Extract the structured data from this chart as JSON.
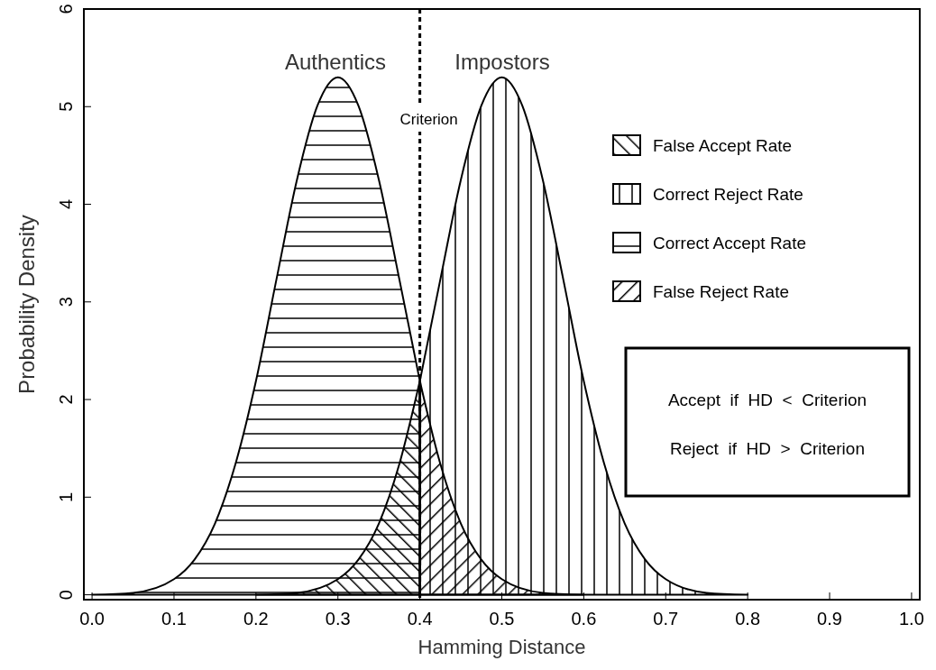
{
  "chart_data": {
    "type": "area",
    "xlabel": "Hamming Distance",
    "ylabel": "Probability Density",
    "xlim": [
      -0.01,
      1.01
    ],
    "ylim": [
      -0.05,
      6
    ],
    "xticks": [
      {
        "value": 0,
        "label": "0.0"
      },
      {
        "value": 0.1,
        "label": "0.1"
      },
      {
        "value": 0.2,
        "label": "0.2"
      },
      {
        "value": 0.3,
        "label": "0.3"
      },
      {
        "value": 0.4,
        "label": "0.4"
      },
      {
        "value": 0.5,
        "label": "0.5"
      },
      {
        "value": 0.6,
        "label": "0.6"
      },
      {
        "value": 0.7,
        "label": "0.7"
      },
      {
        "value": 0.8,
        "label": "0.8"
      },
      {
        "value": 0.9,
        "label": "0.9"
      },
      {
        "value": 1,
        "label": "1.0"
      }
    ],
    "yticks": [
      0,
      1,
      2,
      3,
      4,
      5,
      6
    ],
    "grid": false,
    "legend": "top right",
    "series": [
      {
        "name": "False Accept Rate",
        "color": "#000000",
        "x": [
          0.2,
          0.25,
          0.3,
          0.325,
          0.35,
          0.375,
          0.4
        ],
        "values": [
          0,
          0.02,
          0.16,
          0.36,
          0.73,
          1.34,
          2.19
        ]
      },
      {
        "name": "Correct Reject Rate",
        "color": "#000000",
        "x": [
          0.4,
          0.425,
          0.45,
          0.475,
          0.5,
          0.525,
          0.55,
          0.575,
          0.6,
          0.625,
          0.65,
          0.675,
          0.7,
          0.75,
          0.8
        ],
        "values": [
          2.19,
          3.23,
          4.25,
          5.01,
          5.3,
          5.01,
          4.25,
          3.23,
          2.19,
          1.34,
          0.73,
          0.36,
          0.16,
          0.02,
          0
        ]
      },
      {
        "name": "Correct Accept Rate",
        "color": "#000000",
        "x": [
          0,
          0.05,
          0.1,
          0.125,
          0.15,
          0.175,
          0.2,
          0.225,
          0.25,
          0.275,
          0.3,
          0.325,
          0.35,
          0.375,
          0.4
        ],
        "values": [
          0,
          0.02,
          0.16,
          0.36,
          0.73,
          1.34,
          2.19,
          3.23,
          4.25,
          5.01,
          5.3,
          5.01,
          4.25,
          3.23,
          2.19
        ]
      },
      {
        "name": "False Reject Rate",
        "color": "#000000",
        "x": [
          0.4,
          0.425,
          0.45,
          0.475,
          0.5,
          0.55,
          0.6
        ],
        "values": [
          2.19,
          1.34,
          0.73,
          0.36,
          0.16,
          0.02,
          0
        ]
      }
    ],
    "ref_lines": [
      {
        "axis": "x",
        "value": 0.4,
        "label": "Criterion",
        "line_style": "dashed"
      }
    ],
    "annotations": [
      "Authentics",
      "Impostors",
      "Accept  if  HD  <  Criterion",
      "Reject  if  HD  >  Criterion"
    ]
  }
}
